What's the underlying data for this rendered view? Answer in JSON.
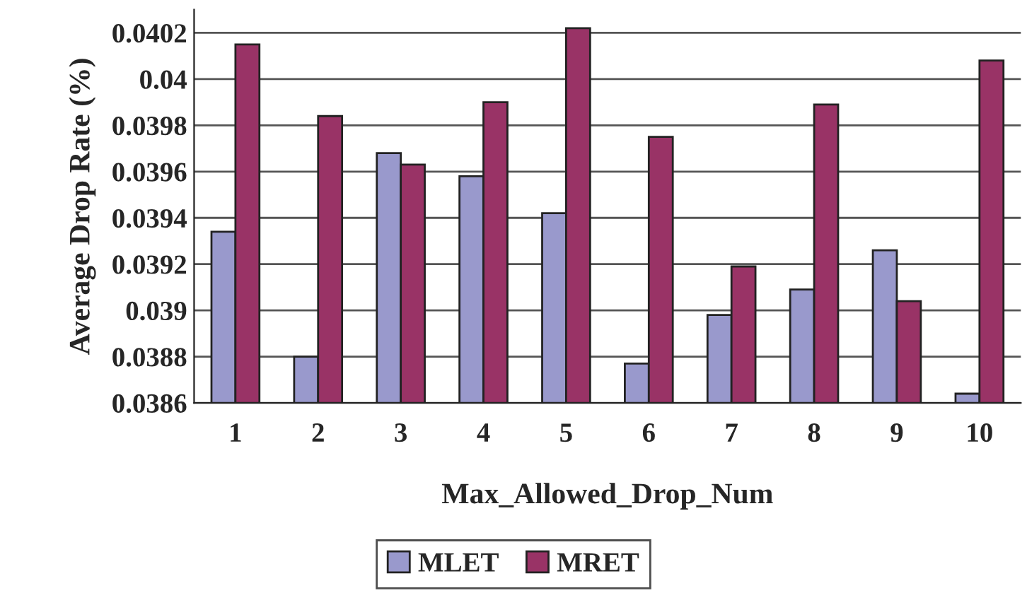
{
  "chart_data": {
    "type": "bar",
    "xlabel": "Max_Allowed_Drop_Num",
    "ylabel": "Average Drop Rate (%)",
    "categories": [
      "1",
      "2",
      "3",
      "4",
      "5",
      "6",
      "7",
      "8",
      "9",
      "10"
    ],
    "series": [
      {
        "name": "MLET",
        "color": "#9999cc",
        "values": [
          0.03934,
          0.0388,
          0.03968,
          0.03958,
          0.03942,
          0.03877,
          0.03898,
          0.03909,
          0.03926,
          0.03864
        ]
      },
      {
        "name": "MRET",
        "color": "#993366",
        "values": [
          0.04015,
          0.03984,
          0.03963,
          0.0399,
          0.04022,
          0.03975,
          0.03919,
          0.03989,
          0.03904,
          0.04008
        ]
      }
    ],
    "ylim": [
      0.0386,
      0.0403
    ],
    "yticks": [
      {
        "value": 0.0386,
        "label": "0.0386"
      },
      {
        "value": 0.0388,
        "label": "0.0388"
      },
      {
        "value": 0.039,
        "label": "0.039"
      },
      {
        "value": 0.0392,
        "label": "0.0392"
      },
      {
        "value": 0.0394,
        "label": "0.0394"
      },
      {
        "value": 0.0396,
        "label": "0.0396"
      },
      {
        "value": 0.0398,
        "label": "0.0398"
      },
      {
        "value": 0.04,
        "label": "0.04"
      },
      {
        "value": 0.0402,
        "label": "0.0402"
      }
    ],
    "grid": "y",
    "legend": "bottom"
  }
}
